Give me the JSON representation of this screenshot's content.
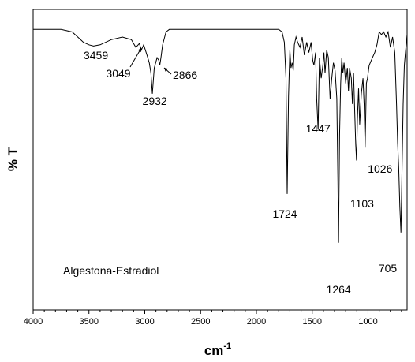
{
  "chart_data": {
    "type": "line",
    "title": "",
    "xlabel": "cm",
    "xlabel_superscript": "-1",
    "ylabel": "% T",
    "xlim": [
      4000,
      650
    ],
    "ylim": [
      0,
      100
    ],
    "x_reversed": true,
    "y_ticks_shown": false,
    "grid": false,
    "x_ticks": [
      4000,
      3500,
      3000,
      2500,
      2000,
      1500,
      1000
    ],
    "x_tick_labels": [
      "4000",
      "3500",
      "3000",
      "2500",
      "2000",
      "1500",
      "1000"
    ],
    "sample_label": "Algestona-Estradiol",
    "series": [
      {
        "x": [
          4000,
          3750,
          3650,
          3600,
          3550,
          3500,
          3459,
          3400,
          3300,
          3200,
          3120,
          3080,
          3049,
          3030,
          3010,
          2980,
          2960,
          2945,
          2932,
          2915,
          2890,
          2875,
          2866,
          2855,
          2840,
          2810,
          2780,
          2700,
          2500,
          2300,
          2100,
          1960,
          1880,
          1800,
          1770,
          1750,
          1735,
          1724,
          1712,
          1700,
          1690,
          1680,
          1670,
          1660,
          1645,
          1630,
          1610,
          1590,
          1570,
          1550,
          1530,
          1510,
          1495,
          1485,
          1470,
          1460,
          1447,
          1435,
          1420,
          1405,
          1395,
          1385,
          1370,
          1355,
          1340,
          1325,
          1310,
          1295,
          1280,
          1270,
          1264,
          1255,
          1245,
          1235,
          1225,
          1215,
          1200,
          1185,
          1175,
          1165,
          1150,
          1140,
          1130,
          1120,
          1110,
          1103,
          1095,
          1085,
          1075,
          1060,
          1045,
          1035,
          1026,
          1015,
          1005,
          990,
          960,
          940,
          920,
          900,
          880,
          860,
          840,
          820,
          800,
          780,
          760,
          745,
          735,
          725,
          715,
          710,
          705,
          695,
          685,
          675,
          665,
          650
        ],
        "y": [
          99,
          99,
          98,
          96,
          94,
          93,
          92.5,
          93,
          95,
          96,
          95,
          92,
          93.5,
          91,
          93,
          89,
          86,
          82,
          74,
          84,
          88,
          87,
          85,
          88,
          93,
          98,
          99,
          99,
          99,
          99,
          99,
          99,
          99,
          99,
          98,
          94,
          80,
          35,
          73,
          91,
          84,
          86,
          83,
          93,
          96,
          94,
          92,
          96,
          89,
          94,
          90,
          94,
          87,
          85,
          90,
          72,
          60,
          88,
          80,
          85,
          90,
          82,
          91,
          88,
          72,
          80,
          86,
          83,
          72,
          40,
          16,
          58,
          78,
          88,
          82,
          86,
          78,
          84,
          75,
          84,
          80,
          70,
          82,
          68,
          54,
          48,
          64,
          76,
          62,
          74,
          80,
          70,
          53,
          78,
          80,
          85,
          88,
          90,
          93,
          98,
          97,
          98,
          96,
          98,
          92,
          96,
          90,
          70,
          55,
          45,
          30,
          25,
          20,
          45,
          70,
          85,
          90,
          97
        ]
      }
    ],
    "annotations": [
      {
        "text": "3459",
        "x": 3459
      },
      {
        "text": "3049",
        "x": 3049,
        "arrow": true
      },
      {
        "text": "2932",
        "x": 2932
      },
      {
        "text": "2866",
        "x": 2866,
        "arrow": true
      },
      {
        "text": "1724",
        "x": 1724
      },
      {
        "text": "1447",
        "x": 1447
      },
      {
        "text": "1264",
        "x": 1264
      },
      {
        "text": "1103",
        "x": 1103
      },
      {
        "text": "1026",
        "x": 1026
      },
      {
        "text": "705",
        "x": 705
      }
    ]
  }
}
